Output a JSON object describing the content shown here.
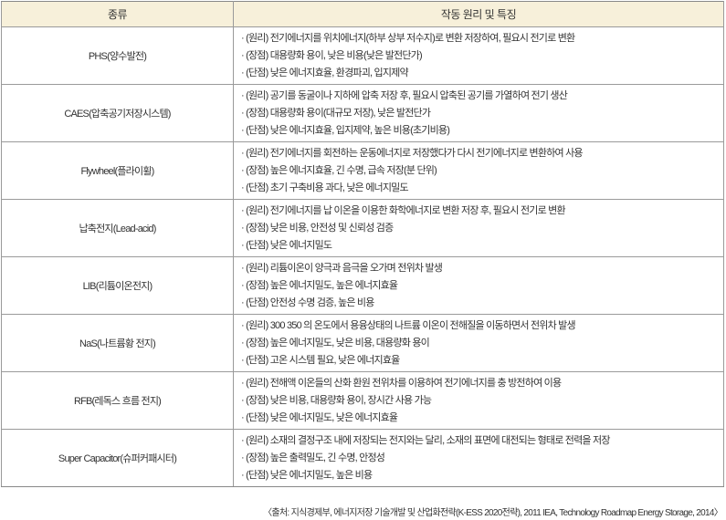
{
  "table": {
    "headers": [
      "종류",
      "작동 원리 및 특징"
    ],
    "rows": [
      {
        "type": "PHS(양수발전)",
        "lines": [
          "· (원리) 전기에너지를 위치에너지(하부 상부 저수지)로 변환 저장하여, 필요시 전기로 변환",
          "· (장점) 대용량화 용이, 낮은 비용(낮은 발전단가)",
          "· (단점) 낮은 에너지효율, 환경파괴, 입지제약"
        ]
      },
      {
        "type": "CAES(압축공기저장시스템)",
        "lines": [
          "· (원리) 공기를 동굴이나 지하에 압축 저장 후, 필요시 압축된 공기를 가열하여 전기 생산",
          "· (장점) 대용량화 용이(대규모 저장), 낮은 발전단가",
          "· (단점) 낮은 에너지효율, 입지제약, 높은 비용(초기비용)"
        ]
      },
      {
        "type": "Flywheel(플라이휠)",
        "lines": [
          "· (원리) 전기에너지를 회전하는 운동에너지로 저장했다가 다시 전기에너지로 변환하여 사용",
          "· (장점) 높은 에너지효율, 긴 수명, 급속 저장(분 단위)",
          "· (단점) 초기 구축비용 과다, 낮은 에너지밀도"
        ]
      },
      {
        "type": "납축전지(Lead-acid)",
        "lines": [
          "· (원리) 전기에너지를 납 이온을 이용한 화학에너지로 변환 저장 후, 필요시 전기로 변환",
          "· (장점) 낮은 비용, 안전성 및 신뢰성 검증",
          "· (단점) 낮은 에너지밀도"
        ]
      },
      {
        "type": "LIB(리튬이온전지)",
        "lines": [
          "· (원리) 리튬이온이 양극과 음극을 오가며 전위차 발생",
          "· (장점) 높은 에너지밀도, 높은 에너지효율",
          "· (단점) 안전성 수명 검증, 높은 비용"
        ]
      },
      {
        "type": "NaS(나트륨황 전지)",
        "lines": [
          "· (원리) 300 350 의 온도에서 용융상태의 나트륨 이온이 전해질을 이동하면서 전위차 발생",
          "· (장점) 높은 에너지밀도, 낮은 비용, 대용량화 용이",
          "· (단점) 고온 시스템 필요, 낮은 에너지효율"
        ]
      },
      {
        "type": "RFB(레독스 흐름 전지)",
        "lines": [
          "· (원리) 전해액 이온들의 산화 환원 전위차를 이용하여 전기에너지를 충 방전하여 이용",
          "· (장점) 낮은 비용, 대용량화 용이, 장시간 사용 가능",
          "· (단점) 낮은 에너지밀도, 낮은 에너지효율"
        ]
      },
      {
        "type": "Super Capacitor(슈퍼커패시터)",
        "lines": [
          "· (원리) 소재의 결정구조 내에 저장되는 전지와는 달리, 소재의 표면에 대전되는 형태로 전력을 저장",
          "· (장점) 높은 출력밀도, 긴 수명, 안정성",
          "· (단점) 낮은 에너지밀도, 높은 비용"
        ]
      }
    ]
  },
  "caption": "〈출처: 지식경제부, 에너지저장 기술개발 및 산업화전략(K-ESS 2020전략), 2011 IEA, Technology Roadmap Energy Storage, 2014〉",
  "colors": {
    "header_bg": "#f7f0da",
    "border": "#9a9a9a",
    "text": "#333333"
  }
}
